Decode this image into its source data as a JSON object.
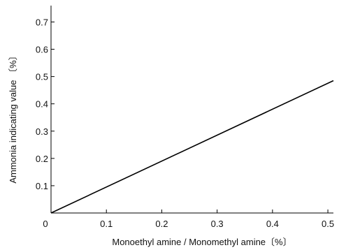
{
  "chart_data": {
    "type": "line",
    "title": "",
    "xlabel": "Monoethyl amine / Monomethyl amine〔%〕",
    "ylabel": "Ammonia indicating value 〔%〕",
    "xlim": [
      0,
      0.51
    ],
    "ylim": [
      0,
      0.76
    ],
    "x_ticks": [
      0,
      0.1,
      0.2,
      0.3,
      0.4,
      0.5
    ],
    "x_tick_labels": [
      "0",
      "0.1",
      "0.2",
      "0.3",
      "0.4",
      "0.5"
    ],
    "y_ticks": [
      0.1,
      0.2,
      0.3,
      0.4,
      0.5,
      0.6,
      0.7
    ],
    "y_tick_labels": [
      "0.1",
      "0.2",
      "0.3",
      "0.4",
      "0.5",
      "0.6",
      "0.7"
    ],
    "grid": false,
    "series": [
      {
        "x": [
          0,
          0.51
        ],
        "y": [
          0,
          0.485
        ],
        "color": "#000000"
      }
    ]
  }
}
